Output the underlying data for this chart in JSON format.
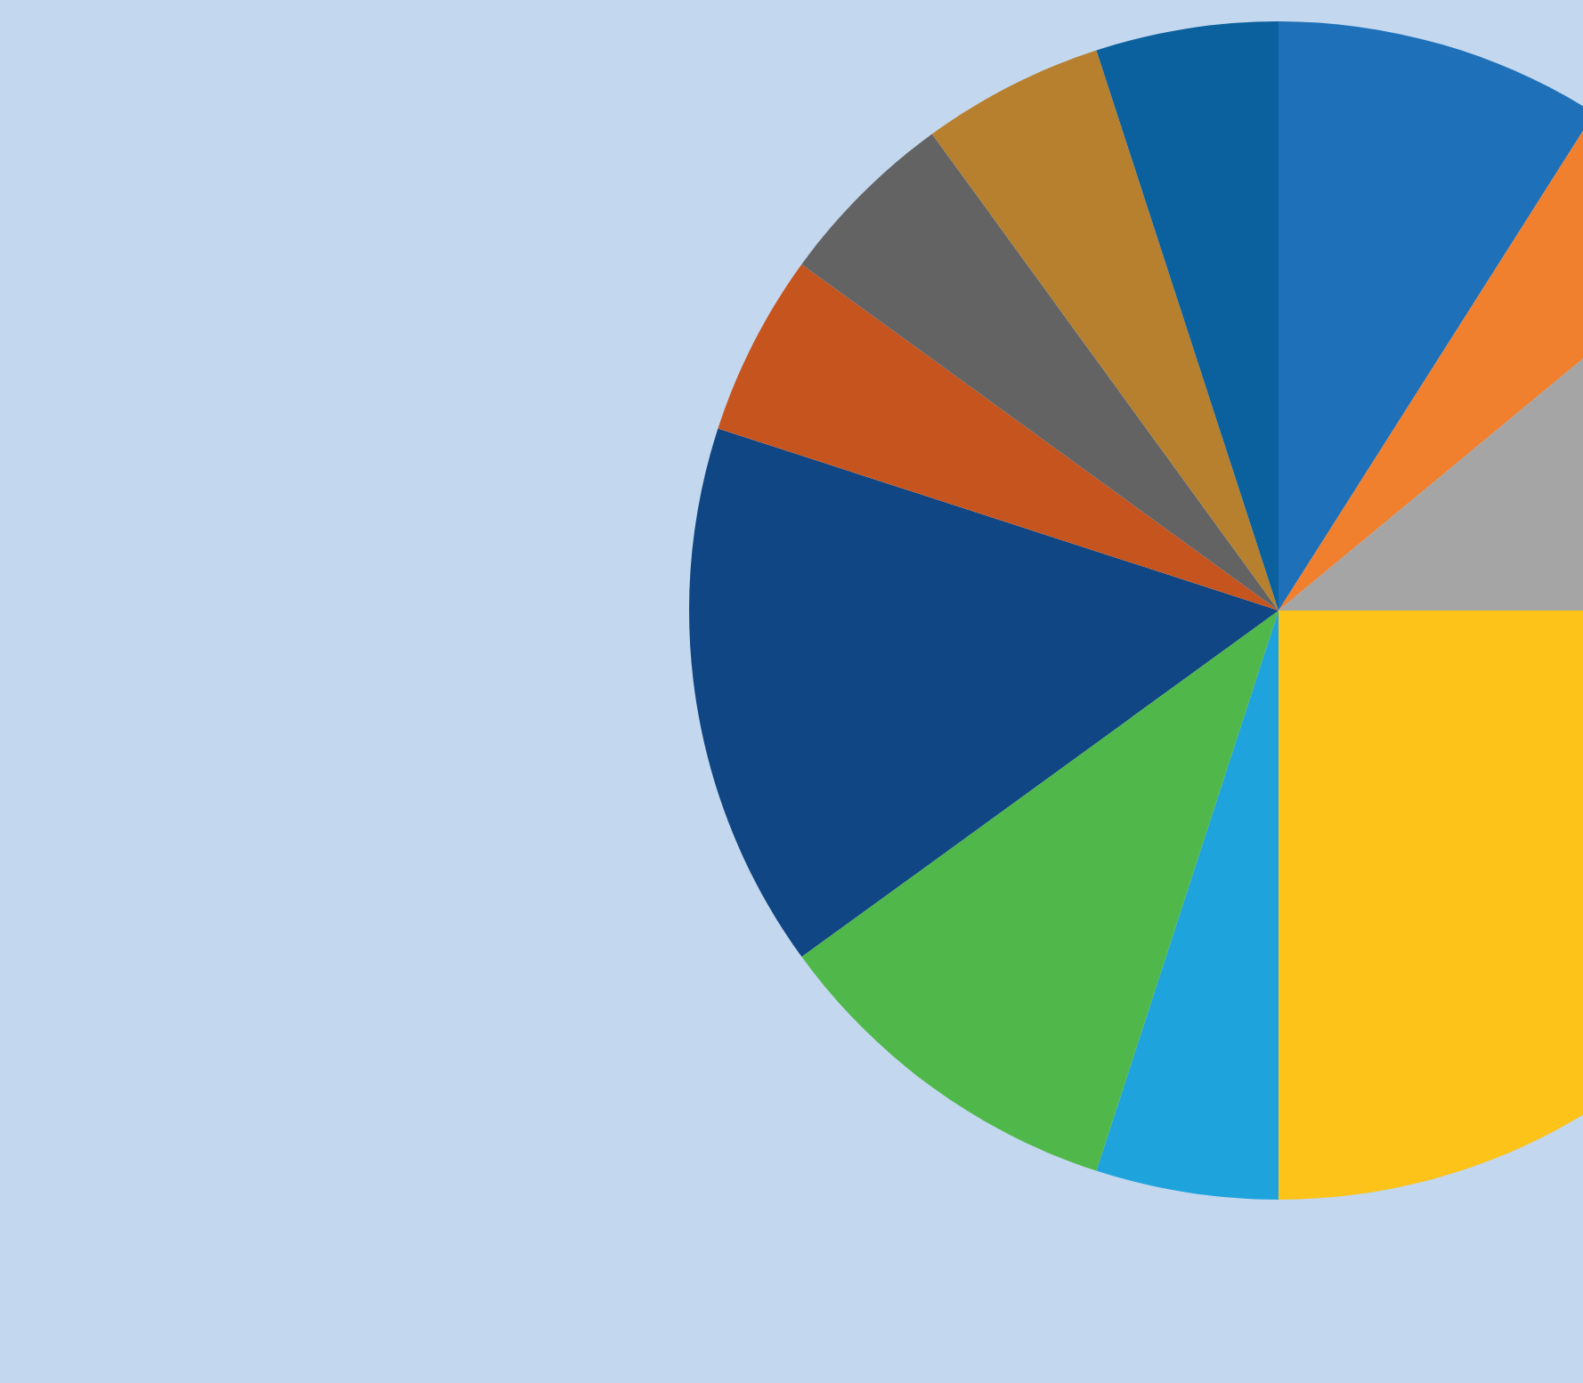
{
  "chart_data": {
    "type": "pie",
    "categories": [
      null,
      null,
      null,
      null,
      null,
      null,
      null,
      null,
      null,
      null,
      null
    ],
    "values": [
      9,
      5,
      11,
      25,
      5,
      10,
      15,
      5,
      5,
      5,
      5
    ],
    "colors": [
      "#1e70b9",
      "#f07f2e",
      "#a5a5a5",
      "#fdc318",
      "#1fa3dc",
      "#50b84a",
      "#104683",
      "#c6541f",
      "#636363",
      "#b7802f",
      "#0a619d"
    ]
  }
}
